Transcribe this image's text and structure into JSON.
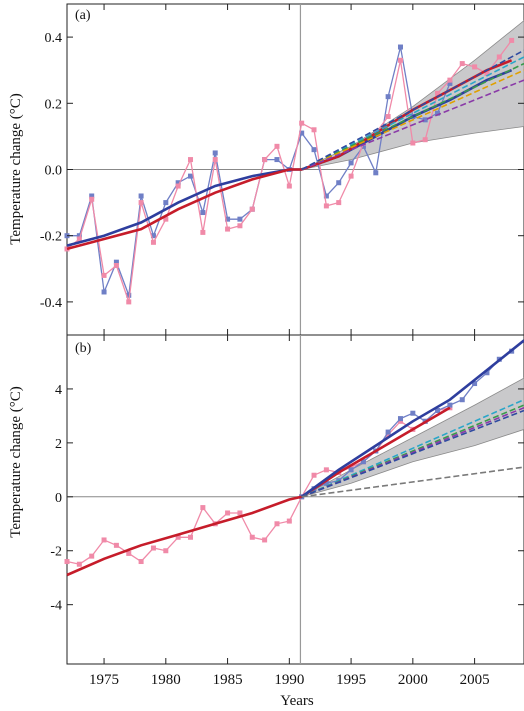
{
  "chart_data": [
    {
      "panel_label": "(a)",
      "type": "line",
      "ylabel": "Temperature change (°C)",
      "ylim": [
        -0.5,
        0.5
      ],
      "xlim": [
        1972,
        2009
      ],
      "yticks": [
        -0.4,
        -0.2,
        0.0,
        0.2,
        0.4
      ],
      "ytick_labels": [
        "-0.4",
        "-0.2",
        "0.0",
        "0.2",
        "0.4"
      ],
      "vline_x": 1990.9,
      "hline_y": 0,
      "projection_band": {
        "x": [
          1991,
          1995,
          2000,
          2005,
          2009
        ],
        "lower": [
          0.0,
          0.03,
          0.08,
          0.11,
          0.13
        ],
        "upper": [
          0.0,
          0.07,
          0.19,
          0.33,
          0.45
        ]
      },
      "series": [
        {
          "color": "#6f7fc6",
          "kind": "obs",
          "x": [
            1972,
            1973,
            1974,
            1975,
            1976,
            1977,
            1978,
            1979,
            1980,
            1981,
            1982,
            1983,
            1984,
            1985,
            1986,
            1987,
            1988,
            1989,
            1990,
            1991,
            1992,
            1993,
            1994,
            1995,
            1996,
            1997,
            1998,
            1999,
            2000,
            2001,
            2002,
            2003
          ],
          "y": [
            -0.2,
            -0.2,
            -0.08,
            -0.37,
            -0.28,
            -0.38,
            -0.08,
            -0.2,
            -0.1,
            -0.04,
            -0.02,
            -0.13,
            0.05,
            -0.15,
            -0.15,
            -0.12,
            0.03,
            0.03,
            0.0,
            0.11,
            0.06,
            -0.08,
            -0.04,
            0.02,
            0.07,
            -0.01,
            0.22,
            0.37,
            0.16,
            0.15,
            0.17,
            0.26
          ]
        },
        {
          "color": "#f08aa8",
          "kind": "obs",
          "x": [
            1972,
            1973,
            1974,
            1975,
            1976,
            1977,
            1978,
            1979,
            1980,
            1981,
            1982,
            1983,
            1984,
            1985,
            1986,
            1987,
            1988,
            1989,
            1990,
            1991,
            1992,
            1993,
            1994,
            1995,
            1996,
            1997,
            1998,
            1999,
            2000,
            2001,
            2002,
            2003,
            2004,
            2005,
            2006,
            2007,
            2008
          ],
          "y": [
            -0.24,
            -0.21,
            -0.09,
            -0.32,
            -0.29,
            -0.4,
            -0.1,
            -0.22,
            -0.15,
            -0.05,
            0.03,
            -0.19,
            0.03,
            -0.18,
            -0.17,
            -0.12,
            0.03,
            0.07,
            -0.05,
            0.14,
            0.12,
            -0.11,
            -0.1,
            -0.02,
            0.08,
            0.11,
            0.16,
            0.33,
            0.08,
            0.09,
            0.23,
            0.27,
            0.32,
            0.31,
            0.29,
            0.34,
            0.39
          ]
        },
        {
          "color": "#2e3e9e",
          "kind": "trend",
          "x": [
            1972,
            1975,
            1978,
            1981,
            1984,
            1987,
            1990,
            1991,
            1994,
            1997,
            2000,
            2003,
            2006,
            2008
          ],
          "y": [
            -0.23,
            -0.2,
            -0.16,
            -0.1,
            -0.05,
            -0.02,
            0.0,
            0.0,
            0.04,
            0.1,
            0.16,
            0.21,
            0.27,
            0.3
          ]
        },
        {
          "color": "#c61c2a",
          "kind": "trend",
          "x": [
            1972,
            1975,
            1978,
            1981,
            1984,
            1987,
            1990,
            1991,
            1994,
            1997,
            2000,
            2003,
            2006,
            2008
          ],
          "y": [
            -0.24,
            -0.21,
            -0.18,
            -0.12,
            -0.07,
            -0.03,
            0.0,
            0.0,
            0.04,
            0.11,
            0.18,
            0.24,
            0.3,
            0.33
          ]
        },
        {
          "color": "#2aa6c8",
          "kind": "proj",
          "x": [
            1991,
            2009
          ],
          "y": [
            0.0,
            0.34
          ]
        },
        {
          "color": "#3a9a4a",
          "kind": "proj",
          "x": [
            1991,
            2009
          ],
          "y": [
            0.0,
            0.32
          ]
        },
        {
          "color": "#e0a000",
          "kind": "proj",
          "x": [
            1991,
            2009
          ],
          "y": [
            0.0,
            0.3
          ]
        },
        {
          "color": "#8a3aa8",
          "kind": "proj",
          "x": [
            1991,
            2009
          ],
          "y": [
            0.0,
            0.27
          ]
        },
        {
          "color": "#2f4aa0",
          "kind": "proj",
          "x": [
            1991,
            2009
          ],
          "y": [
            0.0,
            0.36
          ]
        }
      ]
    },
    {
      "panel_label": "(b)",
      "type": "line",
      "ylabel": "Temperature change (°C)",
      "xlabel": "Years",
      "ylim": [
        -6.2,
        6.0
      ],
      "xlim": [
        1972,
        2009
      ],
      "yticks": [
        -4,
        -2,
        0,
        2,
        4
      ],
      "ytick_labels": [
        "-4",
        "-2",
        "0",
        "2",
        "4"
      ],
      "xticks": [
        1975,
        1980,
        1985,
        1990,
        1995,
        2000,
        2005
      ],
      "xtick_labels": [
        "1975",
        "1980",
        "1985",
        "1990",
        "1995",
        "2000",
        "2005"
      ],
      "vline_x": 1990.9,
      "hline_y": 0,
      "projection_band": {
        "x": [
          1991,
          1995,
          2000,
          2005,
          2009
        ],
        "lower": [
          0.0,
          0.5,
          1.3,
          1.9,
          2.5
        ],
        "upper": [
          0.0,
          1.0,
          2.2,
          3.4,
          4.4
        ]
      },
      "series": [
        {
          "color": "#f08aa8",
          "kind": "obs",
          "x": [
            1972,
            1973,
            1974,
            1975,
            1976,
            1977,
            1978,
            1979,
            1980,
            1981,
            1982,
            1983,
            1984,
            1985,
            1986,
            1987,
            1988,
            1989,
            1990,
            1991,
            1992,
            1993,
            1994,
            1995,
            1996,
            1997,
            1998,
            1999,
            2000,
            2001,
            2002,
            2003
          ],
          "y": [
            -2.4,
            -2.5,
            -2.2,
            -1.6,
            -1.8,
            -2.1,
            -2.4,
            -1.9,
            -2.0,
            -1.5,
            -1.5,
            -0.4,
            -1.0,
            -0.6,
            -0.6,
            -1.5,
            -1.6,
            -1.0,
            -0.9,
            0.0,
            0.8,
            1.0,
            0.9,
            1.1,
            1.3,
            1.7,
            2.3,
            2.8,
            2.5,
            2.8,
            3.2,
            3.3
          ]
        },
        {
          "color": "#6f7fc6",
          "kind": "obs",
          "x": [
            1991,
            1992,
            1993,
            1994,
            1995,
            1996,
            1997,
            1998,
            1999,
            2000,
            2001,
            2002,
            2003,
            2004,
            2005,
            2006,
            2007,
            2008
          ],
          "y": [
            0.0,
            0.3,
            0.5,
            0.6,
            1.0,
            1.3,
            1.7,
            2.4,
            2.9,
            3.1,
            2.8,
            3.2,
            3.4,
            3.6,
            4.2,
            4.6,
            5.1,
            5.4
          ]
        },
        {
          "color": "#c61c2a",
          "kind": "trend",
          "x": [
            1972,
            1975,
            1978,
            1981,
            1984,
            1987,
            1990,
            1991,
            1994,
            1997,
            2000,
            2003
          ],
          "y": [
            -2.9,
            -2.3,
            -1.8,
            -1.4,
            -1.0,
            -0.6,
            -0.1,
            0.0,
            0.9,
            1.7,
            2.5,
            3.3
          ]
        },
        {
          "color": "#2e3e9e",
          "kind": "trend",
          "x": [
            1991,
            1994,
            1997,
            2000,
            2003,
            2006,
            2009
          ],
          "y": [
            0.0,
            1.0,
            1.9,
            2.8,
            3.6,
            4.7,
            5.8
          ]
        },
        {
          "color": "#2aa6c8",
          "kind": "proj",
          "x": [
            1991,
            2009
          ],
          "y": [
            0.0,
            3.6
          ]
        },
        {
          "color": "#3a9a4a",
          "kind": "proj",
          "x": [
            1991,
            2009
          ],
          "y": [
            0.0,
            3.4
          ]
        },
        {
          "color": "#8a3aa8",
          "kind": "proj",
          "x": [
            1991,
            2009
          ],
          "y": [
            0.0,
            3.3
          ]
        },
        {
          "color": "#2f4aa0",
          "kind": "proj",
          "x": [
            1991,
            2009
          ],
          "y": [
            0.0,
            3.2
          ]
        },
        {
          "color": "#7a7a7a",
          "kind": "proj",
          "x": [
            1991,
            2009
          ],
          "y": [
            0.0,
            1.1
          ]
        }
      ]
    }
  ]
}
